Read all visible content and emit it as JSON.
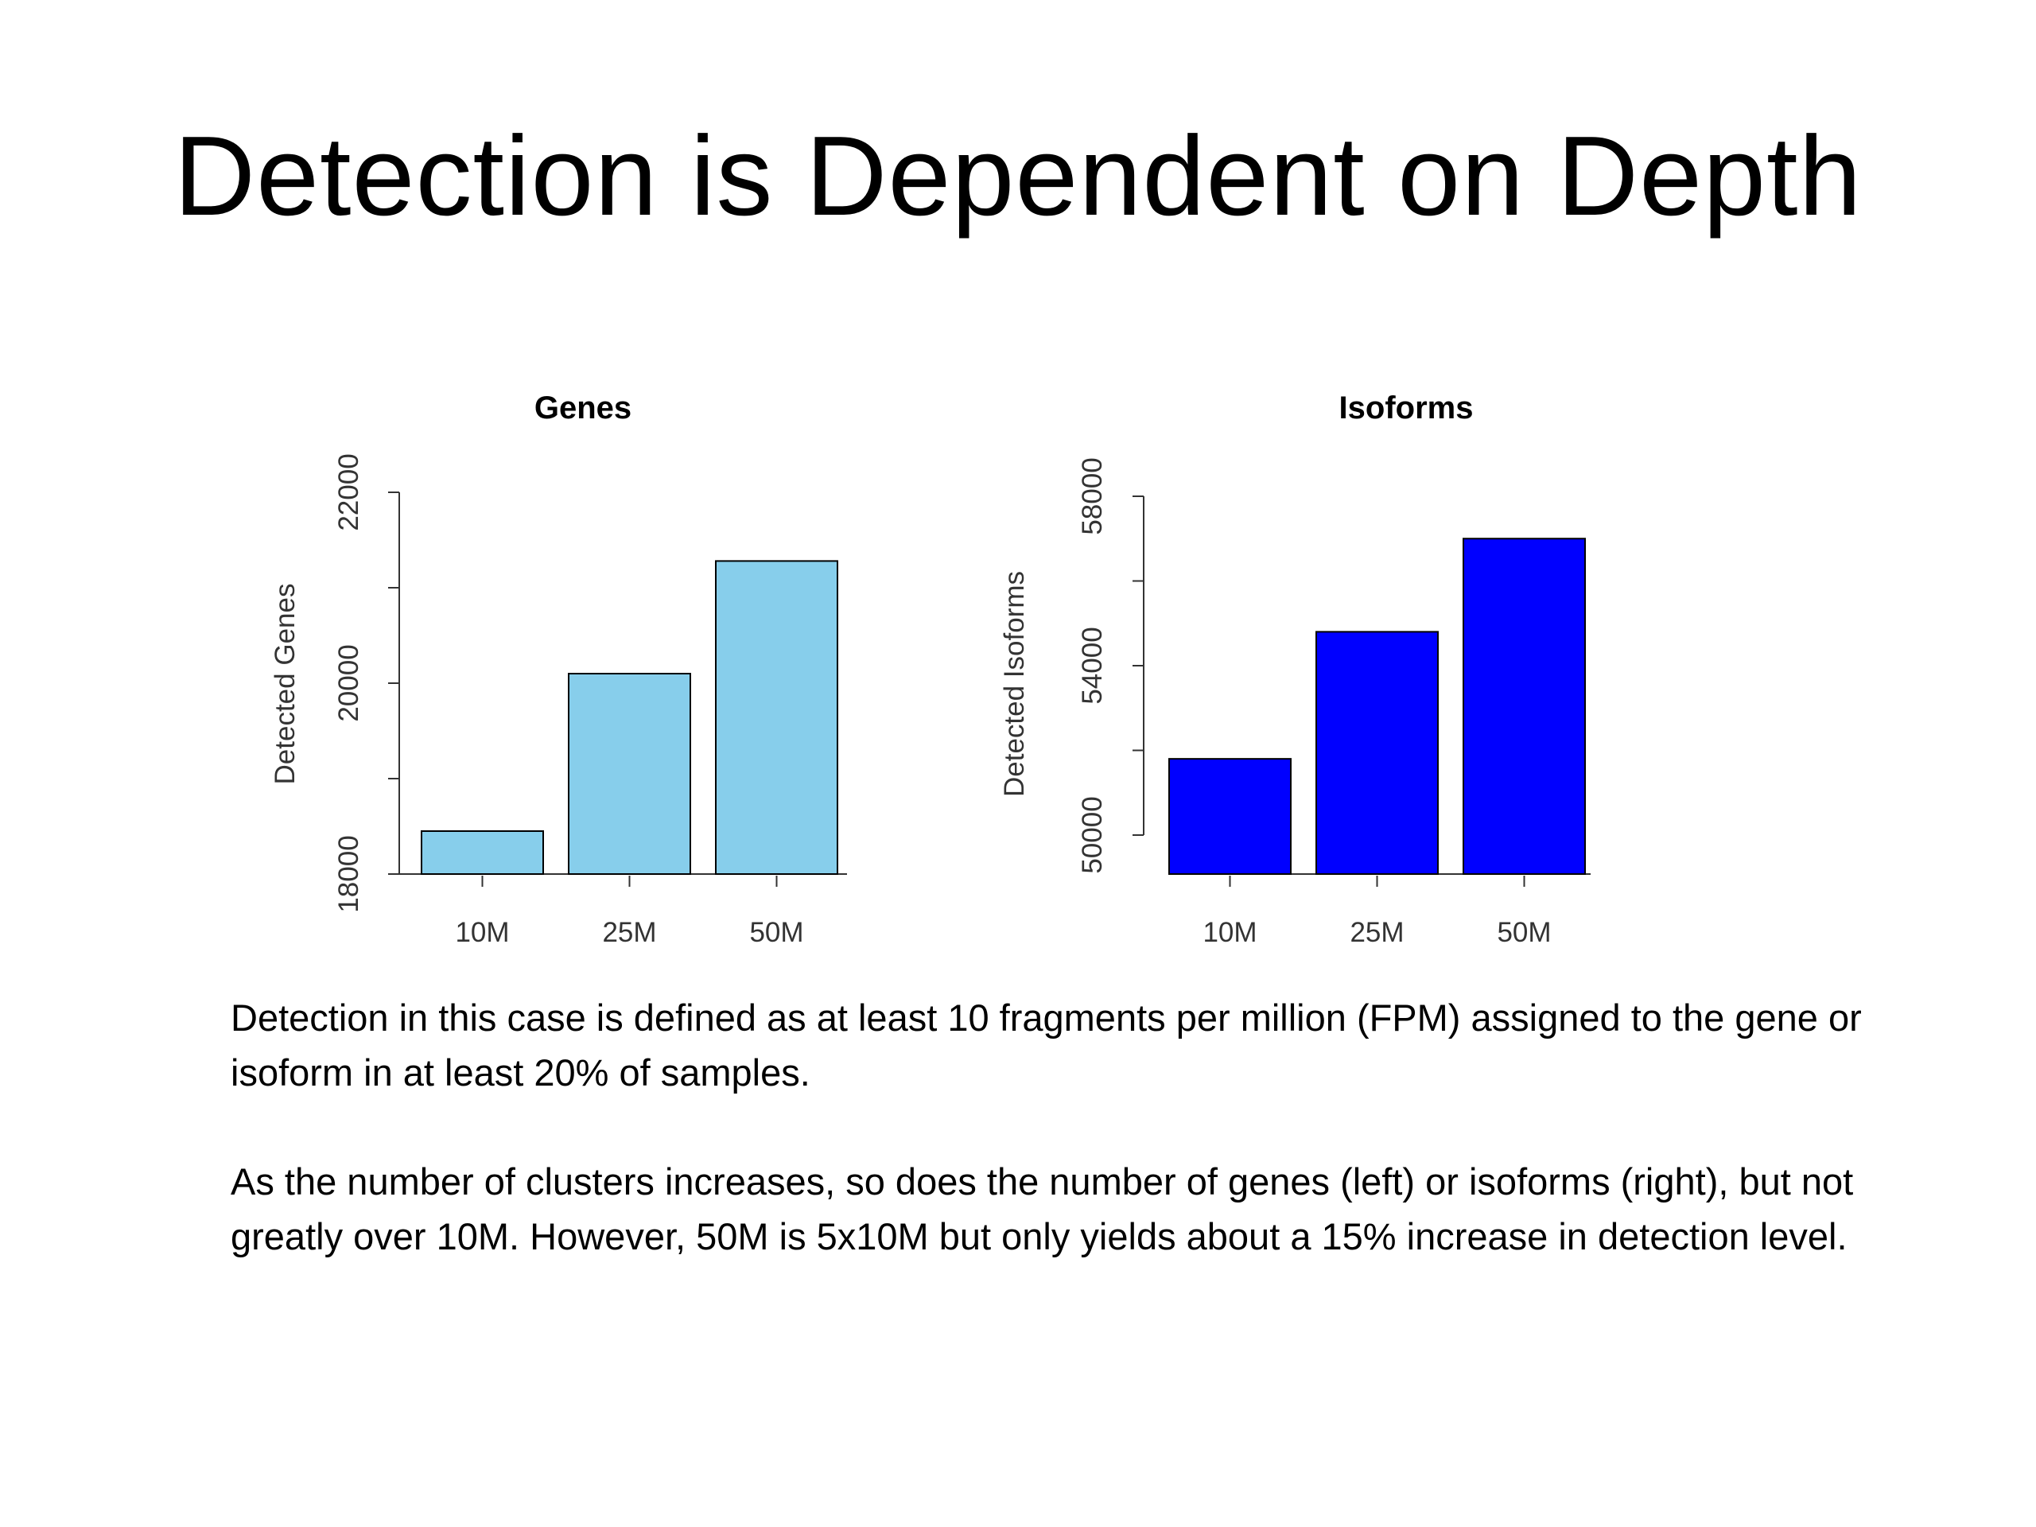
{
  "slide": {
    "title": "Detection is Dependent on Depth",
    "paragraphs": [
      "Detection in this case is defined as at least 10 fragments per million (FPM) assigned to the gene or isoform in at least 20% of samples.",
      "As the number of clusters increases, so does the number of genes (left) or isoforms (right), but not greatly over 10M.  However, 50M is 5x10M but only yields about a 15% increase in detection level."
    ]
  },
  "chart_data": [
    {
      "type": "bar",
      "title": "Genes",
      "xlabel": "",
      "ylabel": "Detected Genes",
      "categories": [
        "10M",
        "25M",
        "50M"
      ],
      "values": [
        18450,
        20100,
        21280
      ],
      "ylim": [
        18000,
        22000
      ],
      "yticks": [
        18000,
        19000,
        20000,
        21000,
        22000
      ],
      "ytick_labels": [
        "18000",
        "",
        "20000",
        "",
        "22000"
      ],
      "bar_color": "#87CEEB",
      "grid": false
    },
    {
      "type": "bar",
      "title": "Isoforms",
      "xlabel": "",
      "ylabel": "Detected Isoforms",
      "categories": [
        "10M",
        "25M",
        "50M"
      ],
      "values": [
        51800,
        54800,
        57000
      ],
      "ylim": [
        50000,
        58000
      ],
      "yticks": [
        50000,
        52000,
        54000,
        56000,
        58000
      ],
      "ytick_labels": [
        "50000",
        "",
        "54000",
        "",
        "58000"
      ],
      "bar_color": "#0000FF",
      "grid": false
    }
  ]
}
